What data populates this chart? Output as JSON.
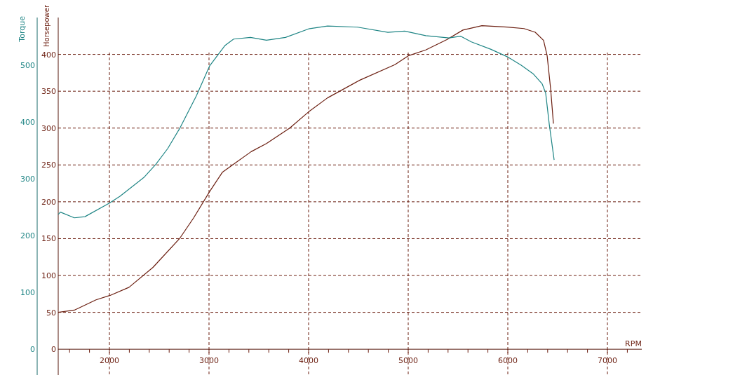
{
  "chart_data": {
    "type": "line",
    "xlabel": "RPM",
    "ylabel": "Horsepower",
    "y2label": "Torque",
    "xlim": [
      1486,
      7345
    ],
    "xticks": [
      {
        "value": 1600,
        "label": null
      },
      {
        "value": 1800,
        "label": null
      },
      2000,
      {
        "value": 2200,
        "label": null
      },
      {
        "value": 2400,
        "label": null
      },
      {
        "value": 2600,
        "label": null
      },
      {
        "value": 2800,
        "label": null
      },
      3000,
      {
        "value": 3200,
        "label": null
      },
      {
        "value": 3400,
        "label": null
      },
      {
        "value": 3600,
        "label": null
      },
      {
        "value": 3800,
        "label": null
      },
      4000,
      {
        "value": 4200,
        "label": null
      },
      {
        "value": 4400,
        "label": null
      },
      {
        "value": 4600,
        "label": null
      },
      {
        "value": 4800,
        "label": null
      },
      5000,
      {
        "value": 5200,
        "label": null
      },
      {
        "value": 5400,
        "label": null
      },
      {
        "value": 5600,
        "label": null
      },
      {
        "value": 5800,
        "label": null
      },
      6000,
      {
        "value": 6200,
        "label": null
      },
      {
        "value": 6400,
        "label": null
      },
      {
        "value": 6600,
        "label": null
      },
      {
        "value": 6800,
        "label": null
      },
      7000,
      {
        "value": 7200,
        "label": null
      }
    ],
    "ylim": [
      -35,
      450
    ],
    "yticks": [
      0,
      50,
      100,
      150,
      200,
      250,
      300,
      350,
      400
    ],
    "y2lim": [
      -46,
      584
    ],
    "y2ticks": [
      0,
      100,
      200,
      300,
      400,
      500
    ],
    "grid": true,
    "line_style": "solid",
    "marker": "none",
    "series": [
      {
        "color": "#6b1e10",
        "x": [
          1486,
          1648,
          1866,
          2007,
          2197,
          2437,
          2704,
          2845,
          3007,
          3134,
          3247,
          3423,
          3577,
          3810,
          4000,
          4190,
          4514,
          4866,
          5000,
          5176,
          5388,
          5549,
          5740,
          5993,
          6162,
          6275,
          6359,
          6395,
          6430,
          6458
        ],
        "values": [
          50,
          53,
          67,
          73,
          84,
          111,
          150,
          178,
          214,
          240,
          251,
          268,
          279,
          300,
          322,
          341,
          365,
          386,
          398,
          406,
          420,
          433,
          439,
          437,
          435,
          430,
          419,
          398,
          353,
          306
        ]
      },
      {
        "color": "#1f8585",
        "axis": "y2",
        "x": [
          1486,
          1508,
          1648,
          1754,
          2000,
          2106,
          2345,
          2465,
          2585,
          2704,
          2873,
          3007,
          3162,
          3247,
          3416,
          3577,
          3768,
          4000,
          4190,
          4493,
          4796,
          4965,
          5176,
          5409,
          5528,
          5634,
          5831,
          5993,
          6134,
          6254,
          6345,
          6380,
          6416,
          6465
        ],
        "values": [
          237,
          241,
          231,
          233,
          257,
          269,
          302,
          325,
          353,
          388,
          446,
          499,
          535,
          546,
          549,
          544,
          549,
          564,
          569,
          567,
          558,
          560,
          552,
          548,
          551,
          541,
          528,
          515,
          500,
          485,
          467,
          451,
          396,
          333
        ]
      }
    ]
  }
}
